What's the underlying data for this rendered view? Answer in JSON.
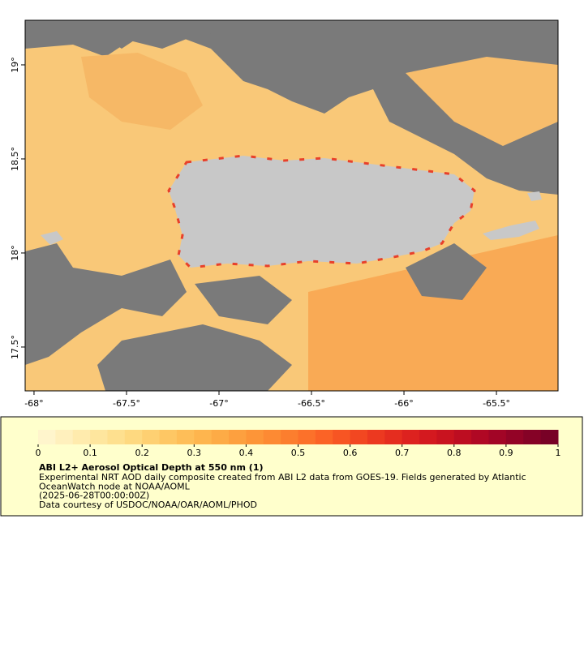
{
  "chart_data": {
    "type": "map",
    "xlim": [
      -68.048,
      -65.167
    ],
    "ylim": [
      17.267,
      19.237
    ],
    "xticks": [
      {
        "value": -68,
        "label": "-68°"
      },
      {
        "value": -67.5,
        "label": "-67.5°"
      },
      {
        "value": -67,
        "label": "-67°"
      },
      {
        "value": -66.5,
        "label": "-66.5°"
      },
      {
        "value": -66,
        "label": "-66°"
      },
      {
        "value": -65.5,
        "label": "-65.5°"
      }
    ],
    "yticks": [
      {
        "value": 17.5,
        "label": "17.5°"
      },
      {
        "value": 18,
        "label": "18°"
      },
      {
        "value": 18.5,
        "label": "18.5°"
      },
      {
        "value": 19,
        "label": "19°"
      }
    ],
    "colorbar": {
      "lim": [
        0,
        1
      ],
      "ticks": [
        0,
        0.1,
        0.2,
        0.3,
        0.4,
        0.5,
        0.6,
        0.7,
        0.8,
        0.9,
        1
      ],
      "colors": [
        "#fff5cc",
        "#fff0bd",
        "#ffebad",
        "#fee69e",
        "#fee08f",
        "#fed980",
        "#fed072",
        "#fec764",
        "#febe58",
        "#feb54e",
        "#fdab46",
        "#fda03f",
        "#fd9538",
        "#fd8a33",
        "#fc7e2e",
        "#fc712a",
        "#fb6326",
        "#f75523",
        "#f24721",
        "#ec3920",
        "#e52d1f",
        "#dd221f",
        "#d4191f",
        "#c9131f",
        "#bd0d21",
        "#b00824",
        "#a20526",
        "#930326",
        "#850226",
        "#780126"
      ]
    },
    "legend": {
      "title": "ABI L2+ Aerosol Optical Depth at 550 nm (1)",
      "lines": [
        "Experimental NRT AOD daily composite created from ABI L2 data from GOES-19. Fields generated by Atlantic",
        "OceanWatch node at NOAA/AOML",
        "(2025-06-28T00:00:00Z)",
        "Data courtesy of USDOC/NOAA/OAR/AOML/PHOD"
      ]
    }
  }
}
